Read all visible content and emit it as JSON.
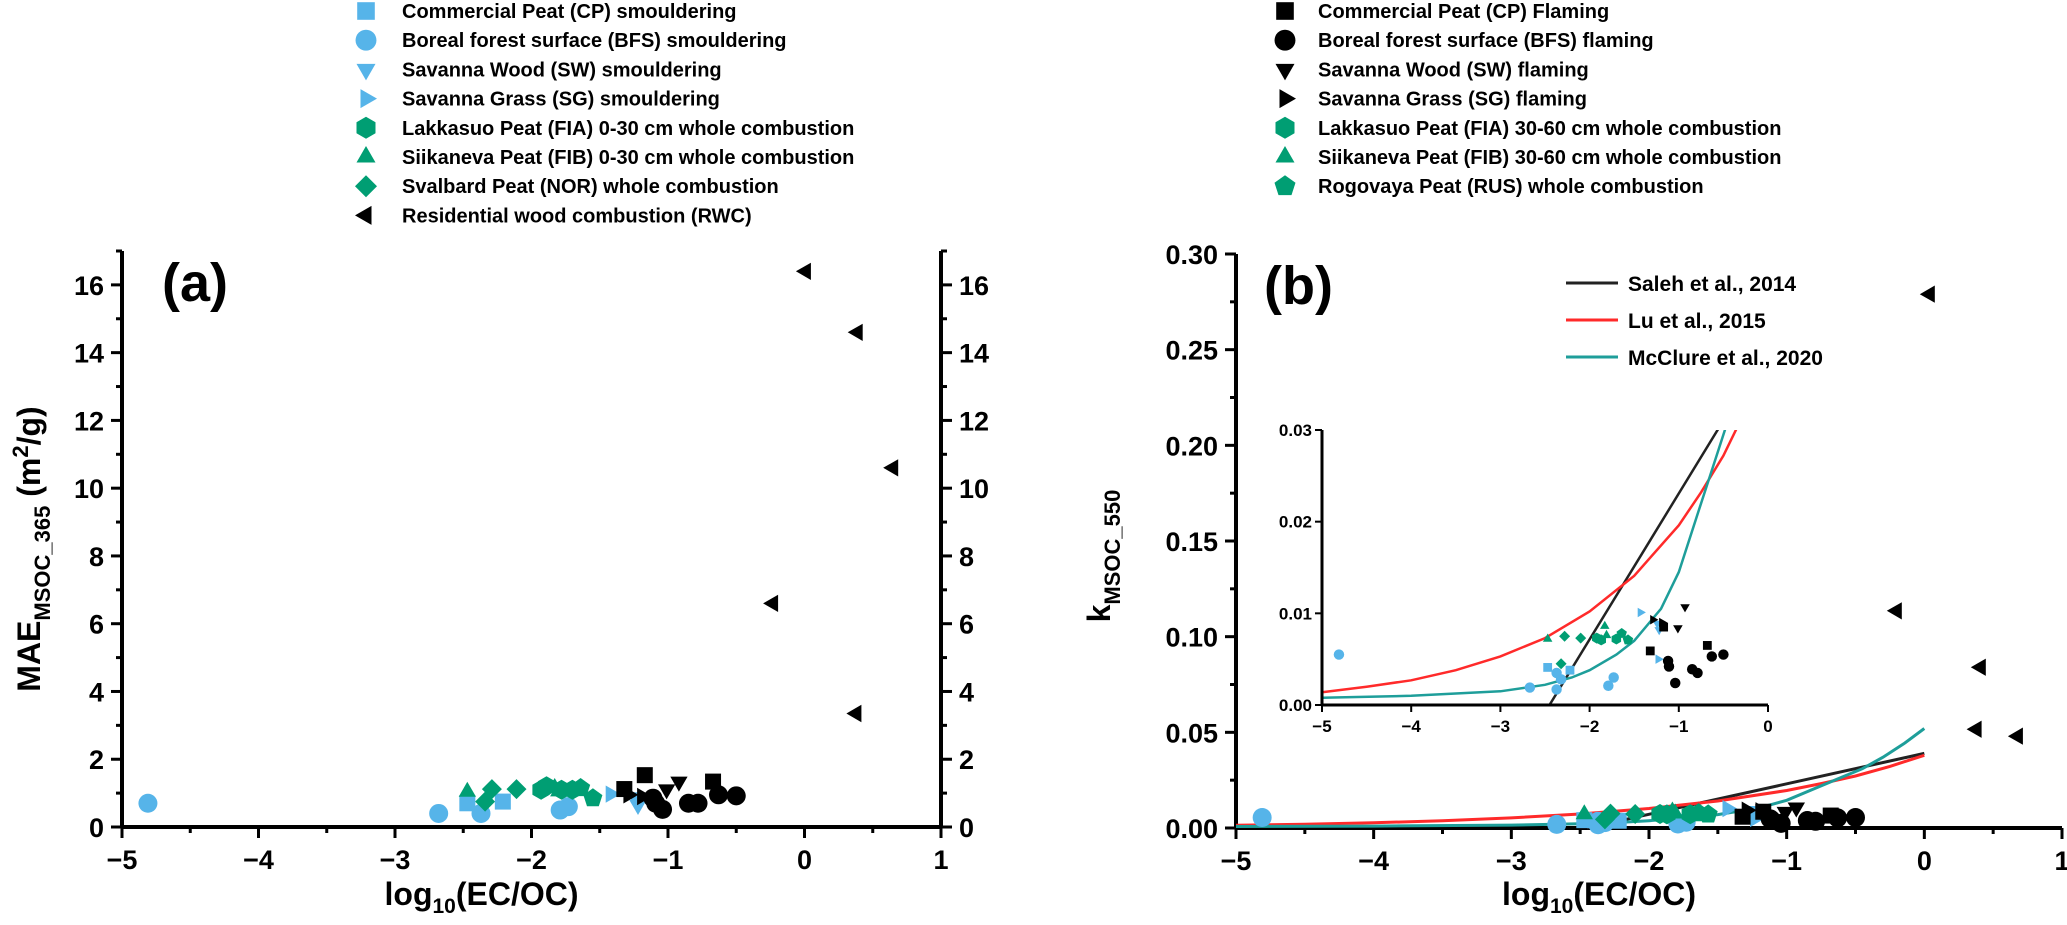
{
  "colors": {
    "smouldering": "#56b4e9",
    "peat": "#009e73",
    "flaming": "#000000",
    "saleh": "#222222",
    "lu": "#ff2a2a",
    "mcclure": "#1e9e9a"
  },
  "chart_data": [
    {
      "type": "scatter",
      "panel_label": "(a)",
      "xlabel": {
        "main": "log",
        "sub": "10",
        "rest": "(EC/OC)"
      },
      "ylabel": {
        "main": "MAE",
        "sub": "MSOC_365",
        "rest": " (m",
        "sup": "2",
        "end": "/g)"
      },
      "xlim": [
        -5,
        1
      ],
      "ylim": [
        0,
        17
      ],
      "xticks": [
        -5,
        -4,
        -3,
        -2,
        -1,
        0,
        1
      ],
      "yticks": [
        0,
        2,
        4,
        6,
        8,
        10,
        12,
        14,
        16
      ],
      "grid": false
    },
    {
      "type": "scatter",
      "panel_label": "(b)",
      "xlabel": {
        "main": "log",
        "sub": "10",
        "rest": "(EC/OC)"
      },
      "ylabel": {
        "main": "k",
        "sub": "MSOC_550"
      },
      "xlim": [
        -5,
        1
      ],
      "ylim": [
        0,
        0.3
      ],
      "xticks": [
        -5,
        -4,
        -3,
        -2,
        -1,
        0,
        1
      ],
      "yticks": [
        "0.00",
        "0.05",
        "0.10",
        "0.15",
        "0.20",
        "0.25",
        "0.30"
      ],
      "grid": false,
      "inset": {
        "xlim": [
          -5,
          0
        ],
        "ylim": [
          0,
          0.03
        ],
        "xticks": [
          -5,
          -4,
          -3,
          -2,
          -1,
          0
        ],
        "yticks": [
          "0.00",
          "0.01",
          "0.02",
          "0.03"
        ]
      },
      "lines": [
        {
          "name": "Saleh et al., 2014",
          "color_key": "saleh",
          "x": [
            -2.45,
            0
          ],
          "y": [
            0,
            0.039
          ]
        },
        {
          "name": "Lu et al., 2015",
          "color_key": "lu",
          "x": [
            -5,
            -4.5,
            -4,
            -3.5,
            -3,
            -2.5,
            -2,
            -1.5,
            -1,
            -0.75,
            -0.5,
            -0.25,
            0
          ],
          "y": [
            0.0014,
            0.002,
            0.0027,
            0.0038,
            0.0053,
            0.0073,
            0.0102,
            0.0141,
            0.0196,
            0.0232,
            0.0272,
            0.0322,
            0.038
          ]
        },
        {
          "name": "McClure et al., 2020",
          "color_key": "mcclure",
          "x": [
            -5,
            -4,
            -3,
            -2.5,
            -2.2,
            -2,
            -1.7,
            -1.5,
            -1.2,
            -1,
            -0.8,
            -0.6,
            -0.45,
            -0.3,
            -0.15,
            0
          ],
          "y": [
            0.0008,
            0.001,
            0.0015,
            0.0022,
            0.003,
            0.0038,
            0.0055,
            0.007,
            0.0105,
            0.0145,
            0.0205,
            0.0265,
            0.031,
            0.037,
            0.044,
            0.052
          ]
        }
      ]
    }
  ],
  "series": [
    {
      "name": "Commercial Peat (CP) smouldering",
      "marker": "square",
      "color_key": "smouldering",
      "col": 0,
      "mae": [
        [
          -2.47,
          0.7
        ],
        [
          -2.21,
          0.75
        ]
      ],
      "k": [
        [
          -2.47,
          0.0041
        ],
        [
          -2.22,
          0.0038
        ]
      ]
    },
    {
      "name": "Boreal forest surface (BFS) smouldering",
      "marker": "circle",
      "color_key": "smouldering",
      "col": 0,
      "mae": [
        [
          -4.81,
          0.7
        ],
        [
          -2.68,
          0.4
        ],
        [
          -2.37,
          0.4
        ],
        [
          -1.79,
          0.5
        ],
        [
          -1.73,
          0.6
        ]
      ],
      "k": [
        [
          -4.81,
          0.0055
        ],
        [
          -2.67,
          0.0019
        ],
        [
          -2.37,
          0.0035
        ],
        [
          -2.37,
          0.0017
        ],
        [
          -2.32,
          0.0028
        ],
        [
          -1.79,
          0.0021
        ],
        [
          -1.73,
          0.003
        ]
      ]
    },
    {
      "name": "Savanna Wood (SW) smouldering",
      "marker": "down",
      "color_key": "smouldering",
      "col": 0,
      "mae": [
        [
          -1.24,
          0.88
        ],
        [
          -1.22,
          0.65
        ]
      ],
      "k": [
        [
          -1.24,
          0.0089
        ],
        [
          -1.22,
          0.0082
        ]
      ]
    },
    {
      "name": "Savanna Grass (SG) smouldering",
      "marker": "right",
      "color_key": "smouldering",
      "col": 0,
      "mae": [
        [
          -1.42,
          0.97
        ]
      ],
      "k": [
        [
          -1.43,
          0.0101
        ],
        [
          -1.23,
          0.005
        ]
      ]
    },
    {
      "name": "Lakkasuo Peat (FIA) 0-30 cm whole combustion",
      "marker": "hexagon",
      "color_key": "peat",
      "col": 0,
      "mae": [
        [
          -1.93,
          1.1
        ],
        [
          -1.89,
          1.2
        ]
      ],
      "k": [
        [
          -1.92,
          0.0073
        ],
        [
          -1.87,
          0.0071
        ]
      ]
    },
    {
      "name": "Siikaneva Peat (FIB) 0-30 cm whole combustion",
      "marker": "up",
      "color_key": "peat",
      "col": 0,
      "mae": [
        [
          -2.47,
          1.04
        ]
      ],
      "k": [
        [
          -2.47,
          0.0072
        ]
      ]
    },
    {
      "name": "Svalbard Peat (NOR) whole combustion",
      "marker": "diamond",
      "color_key": "peat",
      "col": 0,
      "mae": [
        [
          -2.34,
          0.75
        ],
        [
          -2.29,
          1.12
        ],
        [
          -2.11,
          1.12
        ]
      ],
      "k": [
        [
          -2.32,
          0.0045
        ],
        [
          -2.28,
          0.0075
        ],
        [
          -2.1,
          0.0073
        ]
      ]
    },
    {
      "name": "Residential wood combustion (RWC)",
      "marker": "left",
      "color_key": "flaming",
      "col": 0,
      "mae": [
        [
          0.01,
          16.4
        ],
        [
          0.39,
          14.6
        ],
        [
          0.65,
          10.6
        ],
        [
          -0.23,
          6.6
        ],
        [
          0.38,
          3.35
        ]
      ],
      "k": [
        [
          0.04,
          0.279
        ],
        [
          -0.2,
          0.1135
        ],
        [
          0.41,
          0.084
        ],
        [
          0.38,
          0.0516
        ],
        [
          0.68,
          0.048
        ]
      ]
    },
    {
      "name": "Commercial Peat (CP) Flaming",
      "marker": "square",
      "color_key": "flaming",
      "col": 1,
      "mae": [
        [
          -1.32,
          1.12
        ],
        [
          -1.17,
          1.53
        ],
        [
          -0.67,
          1.34
        ]
      ],
      "k": [
        [
          -1.32,
          0.0059
        ],
        [
          -1.17,
          0.0085
        ],
        [
          -0.68,
          0.0065
        ]
      ]
    },
    {
      "name": "Boreal forest surface (BFS) flaming",
      "marker": "circle",
      "color_key": "flaming",
      "col": 1,
      "mae": [
        [
          -1.11,
          0.85
        ],
        [
          -1.09,
          0.7
        ],
        [
          -1.04,
          0.52
        ],
        [
          -0.85,
          0.7
        ],
        [
          -0.78,
          0.7
        ],
        [
          -0.63,
          0.95
        ],
        [
          -0.5,
          0.92
        ]
      ],
      "k": [
        [
          -1.12,
          0.0048
        ],
        [
          -1.11,
          0.0042
        ],
        [
          -1.04,
          0.0024
        ],
        [
          -0.85,
          0.0039
        ],
        [
          -0.79,
          0.0035
        ],
        [
          -0.63,
          0.0053
        ],
        [
          -0.5,
          0.0055
        ]
      ]
    },
    {
      "name": "Savanna Wood (SW) flaming",
      "marker": "down",
      "color_key": "flaming",
      "col": 1,
      "mae": [
        [
          -1.01,
          1.11
        ],
        [
          -0.92,
          1.34
        ]
      ],
      "k": [
        [
          -1.01,
          0.0084
        ],
        [
          -0.93,
          0.0107
        ]
      ]
    },
    {
      "name": "Savanna Grass (SG) flaming",
      "marker": "right",
      "color_key": "flaming",
      "col": 1,
      "mae": [
        [
          -1.29,
          0.95
        ],
        [
          -1.19,
          0.9
        ]
      ],
      "k": [
        [
          -1.29,
          0.0093
        ],
        [
          -1.19,
          0.009
        ]
      ]
    },
    {
      "name": "Lakkasuo Peat (FIA) 30-60 cm whole combustion",
      "marker": "hexagon",
      "color_key": "peat",
      "col": 1,
      "mae": [
        [
          -1.78,
          1.1
        ],
        [
          -1.7,
          1.1
        ]
      ],
      "k": [
        [
          -1.7,
          0.0072
        ]
      ]
    },
    {
      "name": "Siikaneva Peat (FIB) 30-60 cm whole combustion",
      "marker": "up",
      "color_key": "peat",
      "col": 1,
      "mae": [
        [
          -1.83,
          1.15
        ],
        [
          -1.8,
          1.05
        ]
      ],
      "k": [
        [
          -1.83,
          0.0086
        ],
        [
          -1.81,
          0.0076
        ]
      ]
    },
    {
      "name": "Rogovaya Peat (RUS) whole combustion",
      "marker": "pentagon",
      "color_key": "peat",
      "col": 1,
      "mae": [
        [
          -1.64,
          1.15
        ],
        [
          -1.55,
          0.85
        ]
      ],
      "k": [
        [
          -1.64,
          0.0078
        ],
        [
          -1.57,
          0.0071
        ]
      ]
    }
  ]
}
